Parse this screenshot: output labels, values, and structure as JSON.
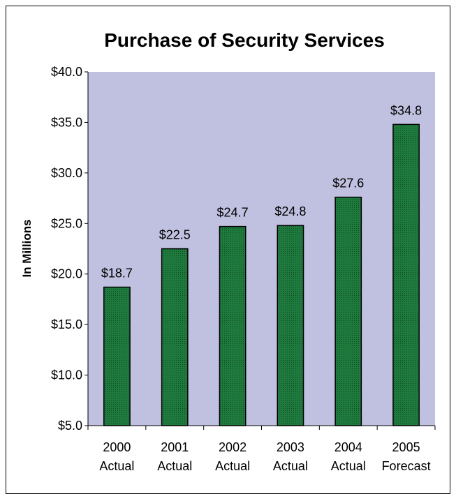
{
  "chart_data": {
    "type": "bar",
    "title": "Purchase of Security Services",
    "xlabel": "",
    "ylabel": "In Millions",
    "ylim": [
      5,
      40
    ],
    "ytick_values": [
      5,
      10,
      15,
      20,
      25,
      30,
      35,
      40
    ],
    "ytick_labels": [
      "$5.0",
      "$10.0",
      "$15.0",
      "$20.0",
      "$25.0",
      "$30.0",
      "$35.0",
      "$40.0"
    ],
    "categories": [
      [
        "2000",
        "Actual"
      ],
      [
        "2001",
        "Actual"
      ],
      [
        "2002",
        "Actual"
      ],
      [
        "2003",
        "Actual"
      ],
      [
        "2004",
        "Actual"
      ],
      [
        "2005",
        "Forecast"
      ]
    ],
    "values": [
      18.7,
      22.5,
      24.7,
      24.8,
      27.6,
      34.8
    ],
    "data_labels": [
      "$18.7",
      "$22.5",
      "$24.7",
      "$24.8",
      "$27.6",
      "$34.8"
    ],
    "grid": false,
    "legend": "none",
    "colors": {
      "plot_background": "#c0c0e0",
      "bar_fill": "#1f7a3e",
      "bar_stroke": "#000000"
    }
  }
}
